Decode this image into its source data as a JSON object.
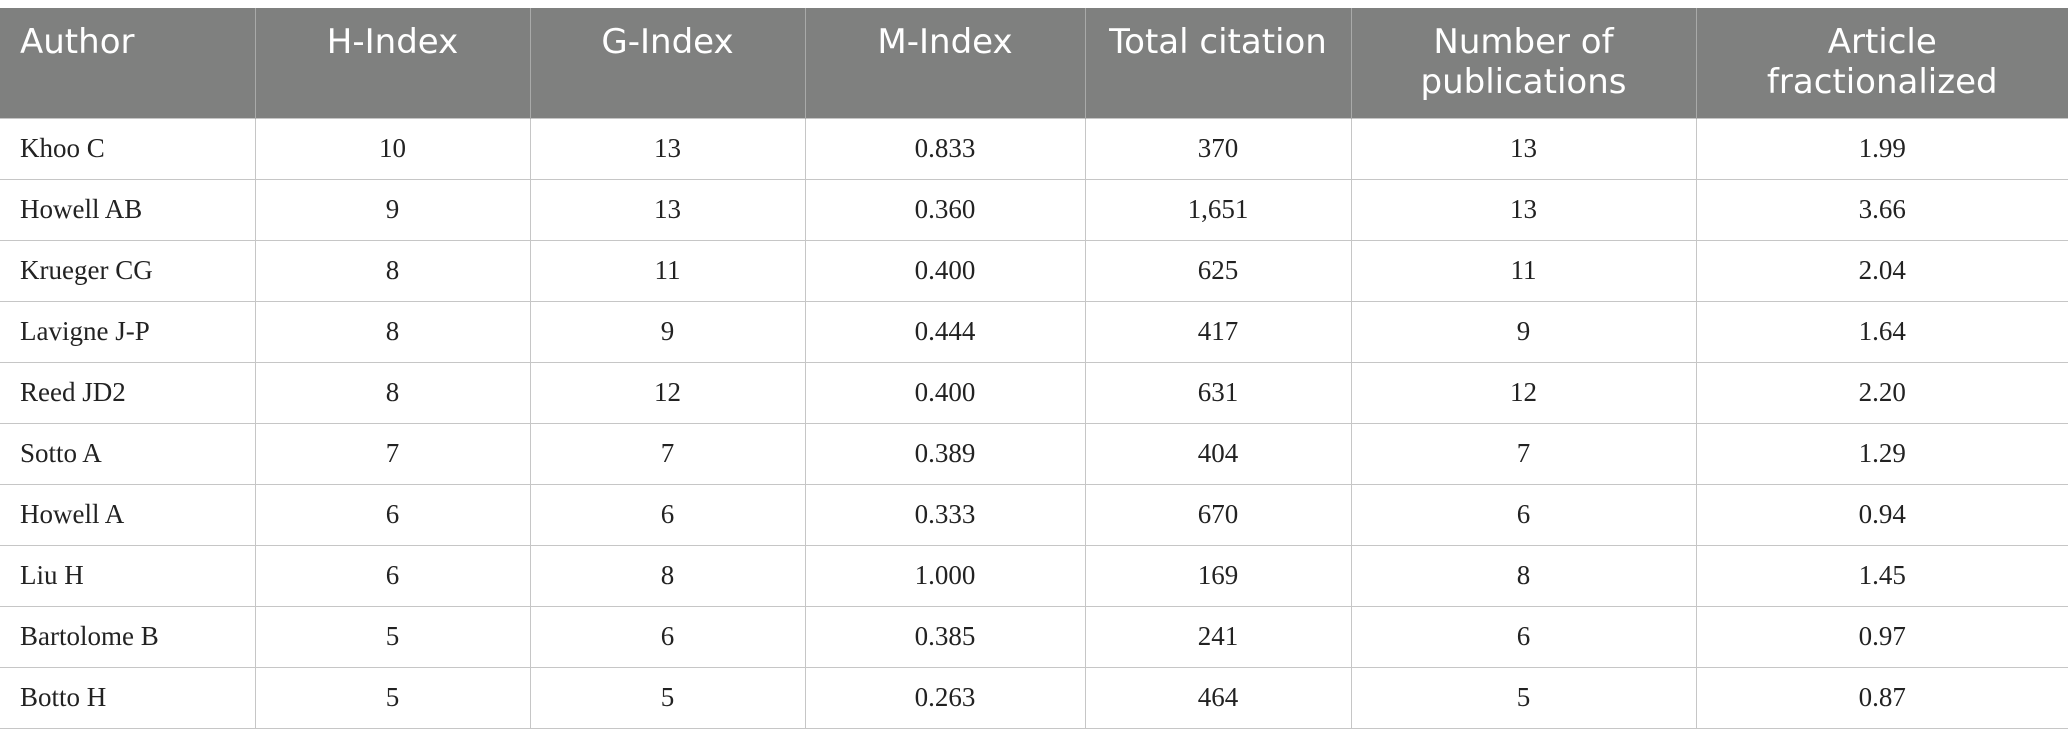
{
  "table": {
    "headers": [
      "Author",
      "H-Index",
      "G-Index",
      "M-Index",
      "Total citation",
      "Number of publications",
      "Article fractionalized"
    ],
    "rows": [
      [
        "Khoo C",
        "10",
        "13",
        "0.833",
        "370",
        "13",
        "1.99"
      ],
      [
        "Howell AB",
        "9",
        "13",
        "0.360",
        "1,651",
        "13",
        "3.66"
      ],
      [
        "Krueger CG",
        "8",
        "11",
        "0.400",
        "625",
        "11",
        "2.04"
      ],
      [
        "Lavigne J-P",
        "8",
        "9",
        "0.444",
        "417",
        "9",
        "1.64"
      ],
      [
        "Reed JD2",
        "8",
        "12",
        "0.400",
        "631",
        "12",
        "2.20"
      ],
      [
        "Sotto A",
        "7",
        "7",
        "0.389",
        "404",
        "7",
        "1.29"
      ],
      [
        "Howell A",
        "6",
        "6",
        "0.333",
        "670",
        "6",
        "0.94"
      ],
      [
        "Liu H",
        "6",
        "8",
        "1.000",
        "169",
        "8",
        "1.45"
      ],
      [
        "Bartolome B",
        "5",
        "6",
        "0.385",
        "241",
        "6",
        "0.97"
      ],
      [
        "Botto H",
        "5",
        "5",
        "0.263",
        "464",
        "5",
        "0.87"
      ]
    ]
  },
  "colors": {
    "header_bg": "#7f807f",
    "header_text": "#ffffff",
    "grid": "#c6c6c6"
  }
}
